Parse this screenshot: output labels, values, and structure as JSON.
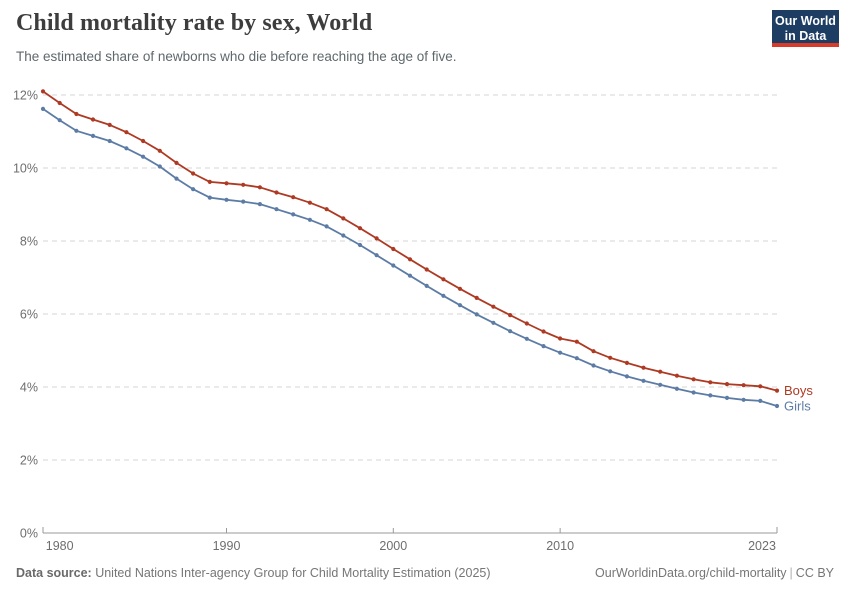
{
  "header": {
    "title": "Child mortality rate by sex, World",
    "subtitle": "The estimated share of newborns who die before reaching the age of five.",
    "logo": {
      "line1": "Our World",
      "line2": "in Data",
      "bg_color": "#1d3d63",
      "accent_color": "#d93b2a"
    }
  },
  "footer": {
    "datasource_label": "Data source:",
    "datasource_text": " United Nations Inter-agency Group for Child Mortality Estimation (2025)",
    "link": "OurWorldinData.org/child-mortality",
    "separator": "|",
    "license": "CC BY"
  },
  "chart_data": {
    "type": "line",
    "title": "Child mortality rate by sex, World",
    "xlabel": "",
    "ylabel": "share of newborns dying before age five (%)",
    "ylim": [
      0,
      12.4
    ],
    "y_ticks": [
      0,
      2,
      4,
      6,
      8,
      10,
      12
    ],
    "y_tick_labels": [
      "0%",
      "2%",
      "4%",
      "6%",
      "8%",
      "10%",
      "12%"
    ],
    "x_tick_years": [
      1980,
      1990,
      2000,
      2010,
      2023
    ],
    "grid": "horizontal-dashed",
    "grid_color": "#d5d5d5",
    "axis_color": "#9a9a9a",
    "legend_position": "end-of-line",
    "x": [
      1979,
      1980,
      1981,
      1982,
      1983,
      1984,
      1985,
      1986,
      1987,
      1988,
      1989,
      1990,
      1991,
      1992,
      1993,
      1994,
      1995,
      1996,
      1997,
      1998,
      1999,
      2000,
      2001,
      2002,
      2003,
      2004,
      2005,
      2006,
      2007,
      2008,
      2009,
      2010,
      2011,
      2012,
      2013,
      2014,
      2015,
      2016,
      2017,
      2018,
      2019,
      2020,
      2021,
      2022,
      2023
    ],
    "series": [
      {
        "name": "Boys",
        "color": "#ae3a23",
        "values": [
          12.1,
          11.78,
          11.48,
          11.33,
          11.18,
          10.98,
          10.74,
          10.47,
          10.14,
          9.85,
          9.62,
          9.58,
          9.54,
          9.47,
          9.33,
          9.2,
          9.05,
          8.87,
          8.62,
          8.35,
          8.07,
          7.78,
          7.5,
          7.22,
          6.95,
          6.69,
          6.44,
          6.2,
          5.97,
          5.74,
          5.52,
          5.33,
          5.24,
          4.98,
          4.8,
          4.66,
          4.53,
          4.42,
          4.31,
          4.21,
          4.13,
          4.08,
          4.05,
          4.02,
          3.9
        ]
      },
      {
        "name": "Girls",
        "color": "#5c7ca6",
        "values": [
          11.62,
          11.31,
          11.02,
          10.88,
          10.74,
          10.54,
          10.31,
          10.04,
          9.71,
          9.42,
          9.19,
          9.13,
          9.08,
          9.01,
          8.87,
          8.73,
          8.58,
          8.4,
          8.15,
          7.89,
          7.61,
          7.33,
          7.05,
          6.77,
          6.5,
          6.24,
          5.99,
          5.76,
          5.53,
          5.32,
          5.12,
          4.94,
          4.79,
          4.59,
          4.43,
          4.29,
          4.17,
          4.06,
          3.95,
          3.85,
          3.77,
          3.7,
          3.65,
          3.62,
          3.48
        ]
      }
    ]
  }
}
